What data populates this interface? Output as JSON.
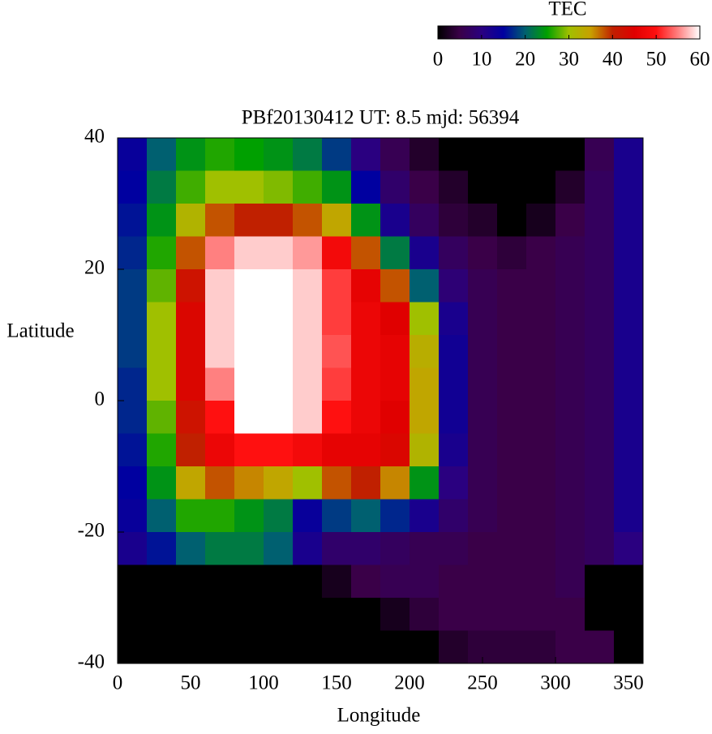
{
  "chart_data": {
    "type": "heatmap",
    "title": "PBf20130412  UT: 8.5  mjd: 56394",
    "xlabel": "Longitude",
    "ylabel": "Latitude",
    "xlim": [
      0,
      360
    ],
    "xticks": [
      0,
      50,
      100,
      150,
      200,
      250,
      300,
      350
    ],
    "ylim": [
      -40,
      40
    ],
    "yticks": [
      -40,
      -20,
      0,
      20,
      40
    ],
    "x": [
      10,
      30,
      50,
      70,
      90,
      110,
      130,
      150,
      170,
      190,
      210,
      230,
      250,
      270,
      290,
      310,
      330,
      350
    ],
    "y": [
      37.5,
      32.5,
      27.5,
      22.5,
      17.5,
      12.5,
      7.5,
      2.5,
      -2.5,
      -7.5,
      -12.5,
      -17.5,
      -22.5,
      -27.5,
      -32.5,
      -37.5
    ],
    "z": [
      [
        14,
        20,
        24,
        26,
        25,
        24,
        22,
        18,
        10,
        6,
        3,
        0,
        0,
        0,
        0,
        0,
        6,
        12
      ],
      [
        15,
        22,
        27,
        30,
        30,
        29,
        27,
        24,
        15,
        8,
        5,
        3,
        0,
        0,
        0,
        3,
        7,
        12
      ],
      [
        16,
        24,
        32,
        38,
        40,
        40,
        38,
        34,
        24,
        12,
        7,
        4,
        3,
        0,
        2,
        5,
        7,
        12
      ],
      [
        17,
        26,
        38,
        55,
        58,
        58,
        56,
        48,
        38,
        22,
        12,
        7,
        5,
        4,
        5,
        6,
        7,
        12
      ],
      [
        18,
        28,
        42,
        58,
        60,
        60,
        58,
        52,
        46,
        38,
        20,
        9,
        6,
        5,
        5,
        6,
        7,
        12
      ],
      [
        18,
        30,
        44,
        58,
        60,
        60,
        58,
        52,
        47,
        45,
        30,
        12,
        6,
        5,
        5,
        6,
        7,
        12
      ],
      [
        18,
        30,
        44,
        58,
        60,
        60,
        58,
        53,
        47,
        46,
        33,
        13,
        6,
        5,
        5,
        6,
        7,
        12
      ],
      [
        17,
        30,
        44,
        55,
        60,
        60,
        58,
        52,
        47,
        46,
        34,
        13,
        6,
        5,
        5,
        6,
        7,
        12
      ],
      [
        17,
        28,
        42,
        50,
        60,
        60,
        58,
        50,
        47,
        45,
        34,
        13,
        6,
        5,
        5,
        6,
        7,
        12
      ],
      [
        16,
        26,
        40,
        47,
        50,
        50,
        48,
        46,
        46,
        44,
        32,
        12,
        6,
        5,
        5,
        6,
        7,
        12
      ],
      [
        15,
        24,
        34,
        38,
        36,
        34,
        30,
        38,
        40,
        36,
        24,
        10,
        6,
        5,
        5,
        6,
        7,
        12
      ],
      [
        14,
        20,
        26,
        26,
        24,
        22,
        14,
        18,
        20,
        17,
        12,
        8,
        6,
        5,
        5,
        6,
        7,
        12
      ],
      [
        12,
        16,
        20,
        22,
        22,
        20,
        12,
        8,
        8,
        7,
        6,
        6,
        5,
        5,
        5,
        6,
        7,
        10
      ],
      [
        0,
        0,
        0,
        0,
        0,
        0,
        0,
        2,
        5,
        6,
        6,
        5,
        5,
        5,
        5,
        6,
        0,
        0
      ],
      [
        0,
        0,
        0,
        0,
        0,
        0,
        0,
        0,
        0,
        2,
        4,
        5,
        5,
        5,
        5,
        5,
        0,
        0
      ],
      [
        0,
        0,
        0,
        0,
        0,
        0,
        0,
        0,
        0,
        0,
        0,
        3,
        4,
        4,
        4,
        5,
        5,
        0
      ]
    ],
    "colorbar": {
      "label": "TEC",
      "lim": [
        0,
        60
      ],
      "ticks": [
        0,
        10,
        20,
        30,
        40,
        50,
        60
      ],
      "colors": [
        "#000000",
        "#3a0048",
        "#2a0080",
        "#0000a0",
        "#006070",
        "#00a000",
        "#a0c000",
        "#c8a000",
        "#c02000",
        "#e00000",
        "#ff1010",
        "#ff8080",
        "#ffffff"
      ]
    }
  }
}
